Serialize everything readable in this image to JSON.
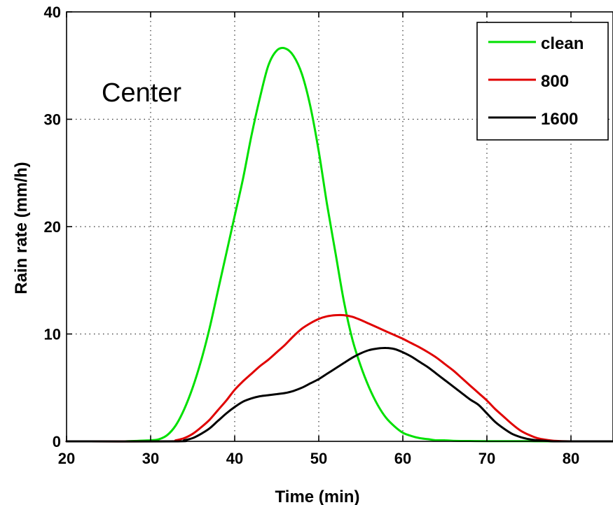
{
  "chart_data": {
    "type": "line",
    "xlabel": "Time (min)",
    "ylabel": "Rain rate (mm/h)",
    "xlim": [
      20,
      85
    ],
    "ylim": [
      0,
      40
    ],
    "x_ticks": [
      "20",
      "30",
      "40",
      "50",
      "60",
      "70",
      "80"
    ],
    "y_ticks": [
      "0",
      "10",
      "20",
      "30",
      "40"
    ],
    "grid": true,
    "legend_position": "top-right",
    "annotation": "Center",
    "series": [
      {
        "name": "clean",
        "color": "#00e000",
        "x": [
          27,
          30,
          31,
          32,
          33,
          34,
          35,
          36,
          37,
          38,
          39,
          40,
          41,
          42,
          43,
          44,
          45,
          46,
          47,
          48,
          49,
          50,
          51,
          52,
          53,
          54,
          55,
          56,
          57,
          58,
          59,
          60,
          61,
          62,
          63,
          64,
          65,
          66,
          68,
          70,
          75,
          80,
          85
        ],
        "y": [
          0,
          0.1,
          0.2,
          0.6,
          1.5,
          3.0,
          5.0,
          7.5,
          10.5,
          14.0,
          17.5,
          21.0,
          24.5,
          28.5,
          32.0,
          35.0,
          36.4,
          36.6,
          35.9,
          34.2,
          31.2,
          27.0,
          22.0,
          17.5,
          13.0,
          9.5,
          7.0,
          5.0,
          3.4,
          2.2,
          1.4,
          0.8,
          0.5,
          0.3,
          0.2,
          0.1,
          0.1,
          0.05,
          0.03,
          0.02,
          0.01,
          0,
          0
        ]
      },
      {
        "name": "800",
        "color": "#e00000",
        "x": [
          20,
          32,
          33,
          34,
          35,
          36,
          37,
          38,
          39,
          40,
          41,
          42,
          43,
          44,
          45,
          46,
          47,
          48,
          49,
          50,
          51,
          52,
          53,
          54,
          55,
          56,
          57,
          58,
          59,
          60,
          61,
          62,
          63,
          64,
          65,
          66,
          67,
          68,
          69,
          70,
          71,
          72,
          73,
          74,
          75,
          76,
          77,
          78,
          80,
          85
        ],
        "y": [
          0,
          0,
          0.1,
          0.3,
          0.7,
          1.3,
          2.0,
          2.9,
          3.8,
          4.8,
          5.6,
          6.3,
          7.0,
          7.6,
          8.3,
          9.0,
          9.8,
          10.5,
          11.0,
          11.4,
          11.65,
          11.75,
          11.75,
          11.6,
          11.3,
          10.95,
          10.6,
          10.25,
          9.9,
          9.55,
          9.15,
          8.75,
          8.3,
          7.8,
          7.2,
          6.6,
          5.9,
          5.2,
          4.5,
          3.8,
          3.0,
          2.3,
          1.6,
          1.0,
          0.6,
          0.3,
          0.15,
          0.05,
          0,
          0
        ]
      },
      {
        "name": "1600",
        "color": "#000000",
        "x": [
          20,
          33,
          34,
          35,
          36,
          37,
          38,
          39,
          40,
          41,
          42,
          43,
          44,
          45,
          46,
          47,
          48,
          49,
          50,
          51,
          52,
          53,
          54,
          55,
          56,
          57,
          58,
          59,
          60,
          61,
          62,
          63,
          64,
          65,
          66,
          67,
          68,
          69,
          70,
          71,
          72,
          73,
          74,
          75,
          76,
          77,
          78,
          80,
          85
        ],
        "y": [
          0,
          0,
          0.1,
          0.3,
          0.7,
          1.2,
          1.9,
          2.6,
          3.2,
          3.7,
          4.0,
          4.2,
          4.3,
          4.4,
          4.5,
          4.7,
          5.0,
          5.4,
          5.8,
          6.3,
          6.8,
          7.3,
          7.8,
          8.2,
          8.5,
          8.65,
          8.7,
          8.6,
          8.3,
          7.9,
          7.4,
          6.9,
          6.3,
          5.7,
          5.1,
          4.5,
          3.9,
          3.4,
          2.6,
          1.8,
          1.2,
          0.7,
          0.4,
          0.2,
          0.1,
          0.05,
          0,
          0,
          0
        ]
      }
    ]
  }
}
